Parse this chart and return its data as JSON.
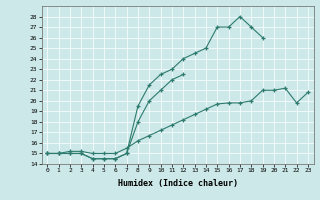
{
  "xlabel": "Humidex (Indice chaleur)",
  "xlim": [
    -0.5,
    23.5
  ],
  "ylim": [
    14,
    29
  ],
  "yticks": [
    14,
    15,
    16,
    17,
    18,
    19,
    20,
    21,
    22,
    23,
    24,
    25,
    26,
    27,
    28
  ],
  "xticks": [
    0,
    1,
    2,
    3,
    4,
    5,
    6,
    7,
    8,
    9,
    10,
    11,
    12,
    13,
    14,
    15,
    16,
    17,
    18,
    19,
    20,
    21,
    22,
    23
  ],
  "bg_color": "#cde8e8",
  "line_color": "#2d7b6e",
  "curves": [
    {
      "x": [
        0,
        1,
        2,
        3,
        4,
        5,
        6,
        7,
        8,
        9,
        10,
        11,
        12,
        13,
        14,
        15,
        16,
        17,
        18,
        19
      ],
      "y": [
        15,
        15,
        15,
        15,
        14.5,
        14.5,
        14.5,
        15,
        19.5,
        21.5,
        22.5,
        23,
        24,
        24.5,
        25,
        27,
        27,
        28,
        27,
        26
      ]
    },
    {
      "x": [
        0,
        1,
        2,
        3,
        4,
        5,
        6,
        7,
        8,
        9,
        10,
        11,
        12
      ],
      "y": [
        15,
        15,
        15,
        15,
        14.5,
        14.5,
        14.5,
        15,
        18,
        20,
        21,
        22,
        22.5
      ]
    },
    {
      "x": [
        0,
        1,
        2,
        3,
        4,
        5,
        6,
        7,
        8,
        9,
        10,
        11,
        12,
        13,
        14,
        15,
        16,
        17,
        18,
        19,
        20,
        21,
        22,
        23
      ],
      "y": [
        15,
        15,
        15.2,
        15.2,
        15,
        15,
        15,
        15.5,
        16.2,
        16.7,
        17.2,
        17.7,
        18.2,
        18.7,
        19.2,
        19.7,
        19.8,
        19.8,
        20,
        21,
        21,
        21.2,
        19.8,
        20.8
      ]
    }
  ]
}
